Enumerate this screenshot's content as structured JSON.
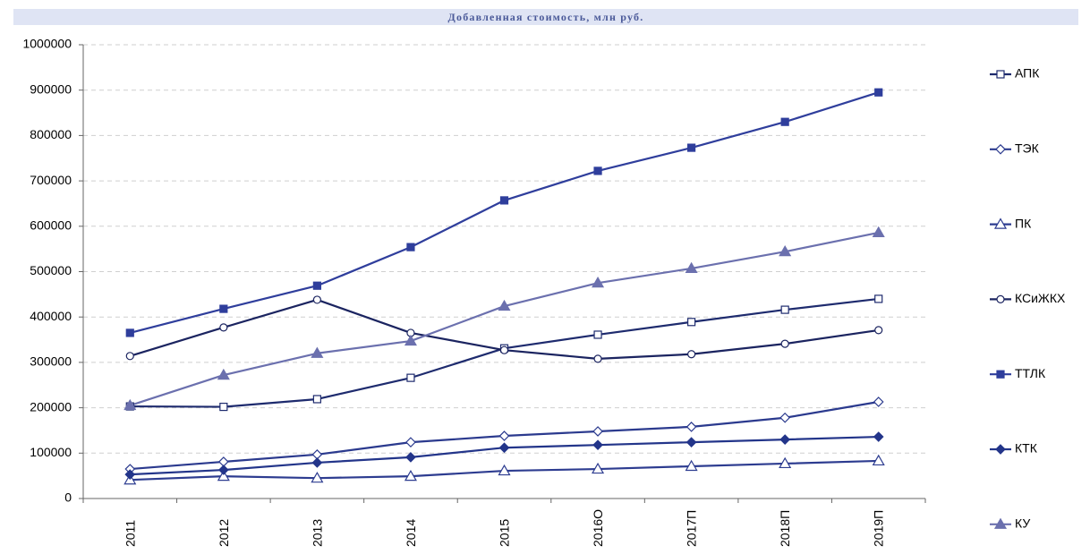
{
  "chart_data": {
    "type": "line",
    "title": "Добавленная стоимость, млн руб.",
    "xlabel": "",
    "ylabel": "",
    "categories": [
      "2011",
      "2012",
      "2013",
      "2014",
      "2015",
      "2016О",
      "2017П",
      "2018П",
      "2019П"
    ],
    "ylim": [
      0,
      1000000
    ],
    "yticks": [
      0,
      100000,
      200000,
      300000,
      400000,
      500000,
      600000,
      700000,
      800000,
      900000,
      1000000
    ],
    "grid": true,
    "legend_position": "right",
    "series": [
      {
        "name": "АПК",
        "marker": "square",
        "filled": false,
        "color": "#1e2b6e",
        "values": [
          203000,
          202000,
          219000,
          266000,
          331000,
          361000,
          389000,
          416000,
          440000
        ]
      },
      {
        "name": "ТЭК",
        "marker": "diamond",
        "filled": false,
        "color": "#2b3a8e",
        "values": [
          65000,
          81000,
          97000,
          124000,
          138000,
          148000,
          158000,
          178000,
          213000
        ]
      },
      {
        "name": "ПК",
        "marker": "triangle",
        "filled": false,
        "color": "#2d3c90",
        "values": [
          41000,
          49000,
          45000,
          49000,
          61000,
          65000,
          71000,
          77000,
          83000
        ]
      },
      {
        "name": "КСиЖКХ",
        "marker": "circle",
        "filled": false,
        "color": "#1b2460",
        "values": [
          314000,
          377000,
          438000,
          365000,
          327000,
          308000,
          318000,
          341000,
          371000
        ]
      },
      {
        "name": "ТТЛК",
        "marker": "square",
        "filled": true,
        "color": "#2f3e9c",
        "values": [
          365000,
          418000,
          469000,
          554000,
          657000,
          722000,
          773000,
          830000,
          895000
        ]
      },
      {
        "name": "КТК",
        "marker": "diamond",
        "filled": true,
        "color": "#23358a",
        "values": [
          53000,
          63000,
          79000,
          91000,
          112000,
          118000,
          124000,
          130000,
          136000
        ]
      },
      {
        "name": "КУ",
        "marker": "triangle",
        "filled": true,
        "color": "#6b70ae",
        "values": [
          205000,
          272000,
          320000,
          347000,
          424000,
          475000,
          507000,
          544000,
          586000
        ]
      }
    ]
  }
}
